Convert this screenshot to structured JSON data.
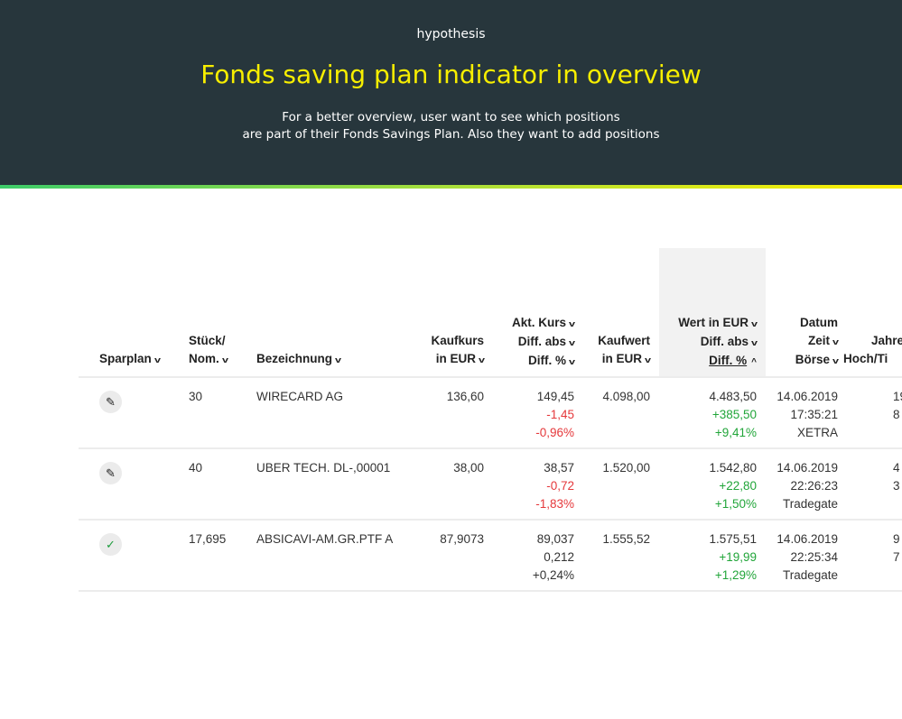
{
  "hero": {
    "kicker": "hypothesis",
    "title": "Fonds saving plan indicator in overview",
    "desc_line1": "For a better overview, user want to see which positions",
    "desc_line2": "are part of their Fonds Savings Plan. Also they want to add positions"
  },
  "colors": {
    "header_bg": "#27363c",
    "title": "#f7ee00",
    "positive": "#21a539",
    "negative": "#e5383b"
  },
  "columns": {
    "sparplan": "Sparplan",
    "stueck1": "Stück/",
    "stueck2": "Nom.",
    "bezeichnung": "Bezeichnung",
    "kaufkurs1": "Kaufkurs",
    "kaufkurs2": "in EUR",
    "akt1": "Akt. Kurs",
    "akt2": "Diff. abs",
    "akt3": "Diff. %",
    "kaufwert1": "Kaufwert",
    "kaufwert2": "in EUR",
    "wert1": "Wert in EUR",
    "wert2": "Diff. abs",
    "wert3": "Diff. %",
    "datum1": "Datum",
    "datum2": "Zeit",
    "datum3": "Börse",
    "jahr1": "Jahre",
    "jahr2": "Hoch/Ti"
  },
  "rows": [
    {
      "sparplan_icon": "pencil-icon",
      "stueck": "30",
      "name": "WIRECARD AG",
      "kaufkurs": "136,60",
      "kurs": "149,45",
      "kurs_abs": "-1,45",
      "kurs_pct": "-0,96%",
      "kaufwert": "4.098,00",
      "wert": "4.483,50",
      "wert_abs": "+385,50",
      "wert_pct": "+9,41%",
      "datum": "14.06.2019",
      "zeit": "17:35:21",
      "boerse": "XETRA",
      "hoch": "19",
      "tief": "8"
    },
    {
      "sparplan_icon": "pencil-icon",
      "stueck": "40",
      "name": "UBER TECH. DL-,00001",
      "kaufkurs": "38,00",
      "kurs": "38,57",
      "kurs_abs": "-0,72",
      "kurs_pct": "-1,83%",
      "kaufwert": "1.520,00",
      "wert": "1.542,80",
      "wert_abs": "+22,80",
      "wert_pct": "+1,50%",
      "datum": "14.06.2019",
      "zeit": "22:26:23",
      "boerse": "Tradegate",
      "hoch": "4",
      "tief": "3"
    },
    {
      "sparplan_icon": "check-icon",
      "stueck": "17,695",
      "name": "ABSICAVI-AM.GR.PTF A",
      "kaufkurs": "87,9073",
      "kurs": "89,037",
      "kurs_abs": "0,212",
      "kurs_pct": "+0,24%",
      "kaufwert": "1.555,52",
      "wert": "1.575,51",
      "wert_abs": "+19,99",
      "wert_pct": "+1,29%",
      "datum": "14.06.2019",
      "zeit": "22:25:34",
      "boerse": "Tradegate",
      "hoch": "9",
      "tief": "7"
    }
  ]
}
